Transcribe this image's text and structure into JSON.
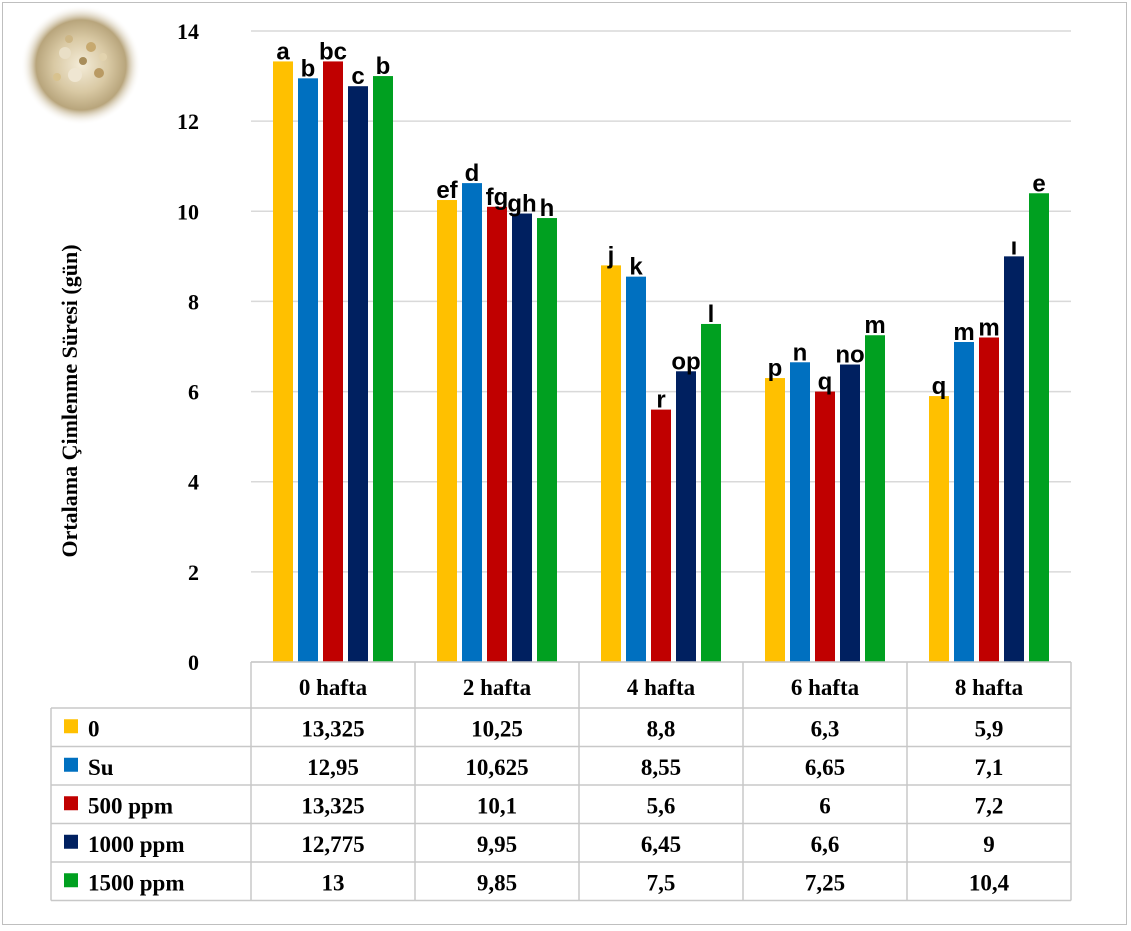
{
  "chart_data": {
    "type": "bar",
    "ylabel": "Ortalama Çimlenme Süresi (gün)",
    "xlabel": "",
    "ylim": [
      0,
      14
    ],
    "yticks": [
      "0",
      "2",
      "4",
      "6",
      "8",
      "10",
      "12",
      "14"
    ],
    "grid": true,
    "legend": "data-table-below",
    "categories": [
      "0 hafta",
      "2 hafta",
      "4 hafta",
      "6 hafta",
      "8 hafta"
    ],
    "series": [
      {
        "name": "0",
        "color": "#FFC000",
        "values": [
          13.325,
          10.25,
          8.8,
          6.3,
          5.9
        ],
        "display": [
          "13,325",
          "10,25",
          "8,8",
          "6,3",
          "5,9"
        ],
        "letters": [
          "a",
          "ef",
          "j",
          "p",
          "q"
        ]
      },
      {
        "name": "Su",
        "color": "#0070C0",
        "values": [
          12.95,
          10.625,
          8.55,
          6.65,
          7.1
        ],
        "display": [
          "12,95",
          "10,625",
          "8,55",
          "6,65",
          "7,1"
        ],
        "letters": [
          "b",
          "d",
          "k",
          "n",
          "m"
        ]
      },
      {
        "name": "500 ppm",
        "color": "#C00000",
        "values": [
          13.325,
          10.1,
          5.6,
          6,
          7.2
        ],
        "display": [
          "13,325",
          "10,1",
          "5,6",
          "6",
          "7,2"
        ],
        "letters": [
          "bc",
          "fg",
          "r",
          "q",
          "m"
        ]
      },
      {
        "name": "1000 ppm",
        "color": "#002060",
        "values": [
          12.775,
          9.95,
          6.45,
          6.6,
          9
        ],
        "display": [
          "12,775",
          "9,95",
          "6,45",
          "6,6",
          "9"
        ],
        "letters": [
          "c",
          "gh",
          "op",
          "no",
          "ı"
        ]
      },
      {
        "name": "1500 ppm",
        "color": "#00A020",
        "values": [
          13,
          9.85,
          7.5,
          7.25,
          10.4
        ],
        "display": [
          "13",
          "9,85",
          "7,5",
          "7,25",
          "10,4"
        ],
        "letters": [
          "b",
          "h",
          "l",
          "m",
          "e"
        ]
      }
    ]
  }
}
